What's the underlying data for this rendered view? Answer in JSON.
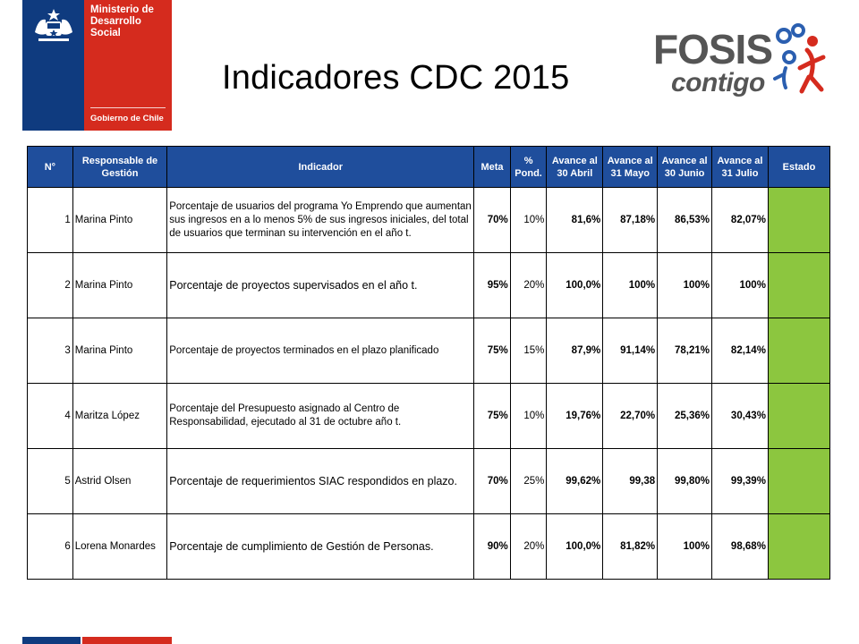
{
  "ministry": {
    "name": "Ministerio de\nDesarrollo\nSocial",
    "government": "Gobierno de Chile"
  },
  "title": "Indicadores CDC 2015",
  "fosis": {
    "word": "FOSIS",
    "tagline": "contigo"
  },
  "table": {
    "headers": [
      "N°",
      "Responsable de Gestión",
      "Indicador",
      "Meta",
      "% Pond.",
      "Avance al 30 Abril",
      "Avance al 31 Mayo",
      "Avance al 30 Junio",
      "Avance al 31 Julio",
      "Estado"
    ],
    "rows": [
      {
        "n": "1",
        "responsable": "Marina Pinto",
        "indicador": "Porcentaje de usuarios del programa Yo Emprendo que aumentan sus ingresos en a lo menos 5% de sus ingresos iniciales, del total de usuarios que terminan su intervención en el año t.",
        "meta": "70%",
        "pond": "10%",
        "abril": "81,6%",
        "mayo": "87,18%",
        "junio": "86,53%",
        "julio": "82,07%"
      },
      {
        "n": "2",
        "responsable": "Marina Pinto",
        "indicador": "Porcentaje de proyectos supervisados en el año t.",
        "meta": "95%",
        "pond": "20%",
        "abril": "100,0%",
        "mayo": "100%",
        "junio": "100%",
        "julio": "100%"
      },
      {
        "n": "3",
        "responsable": "Marina Pinto",
        "indicador": "Porcentaje de proyectos terminados en el plazo planificado",
        "meta": "75%",
        "pond": "15%",
        "abril": "87,9%",
        "mayo": "91,14%",
        "junio": "78,21%",
        "julio": "82,14%"
      },
      {
        "n": "4",
        "responsable": "Maritza López",
        "indicador": "Porcentaje del Presupuesto asignado al Centro de Responsabilidad, ejecutado al 31 de octubre año t.",
        "meta": "75%",
        "pond": "10%",
        "abril": "19,76%",
        "mayo": "22,70%",
        "junio": "25,36%",
        "julio": "30,43%"
      },
      {
        "n": "5",
        "responsable": "Astrid Olsen",
        "indicador": "Porcentaje de requerimientos SIAC respondidos en plazo.",
        "meta": "70%",
        "pond": "25%",
        "abril": "99,62%",
        "mayo": "99,38",
        "junio": "99,80%",
        "julio": "99,39%"
      },
      {
        "n": "6",
        "responsable": "Lorena Monardes",
        "indicador": "Porcentaje de cumplimiento de Gestión de Personas.",
        "meta": "90%",
        "pond": "20%",
        "abril": "100,0%",
        "mayo": "81,82%",
        "junio": "100%",
        "julio": "98,68%"
      }
    ]
  },
  "colors": {
    "header_blue": "#1f4e9c",
    "estado_green": "#8cc63f",
    "ministry_blue": "#0f3b7f",
    "ministry_red": "#d52b1e"
  }
}
